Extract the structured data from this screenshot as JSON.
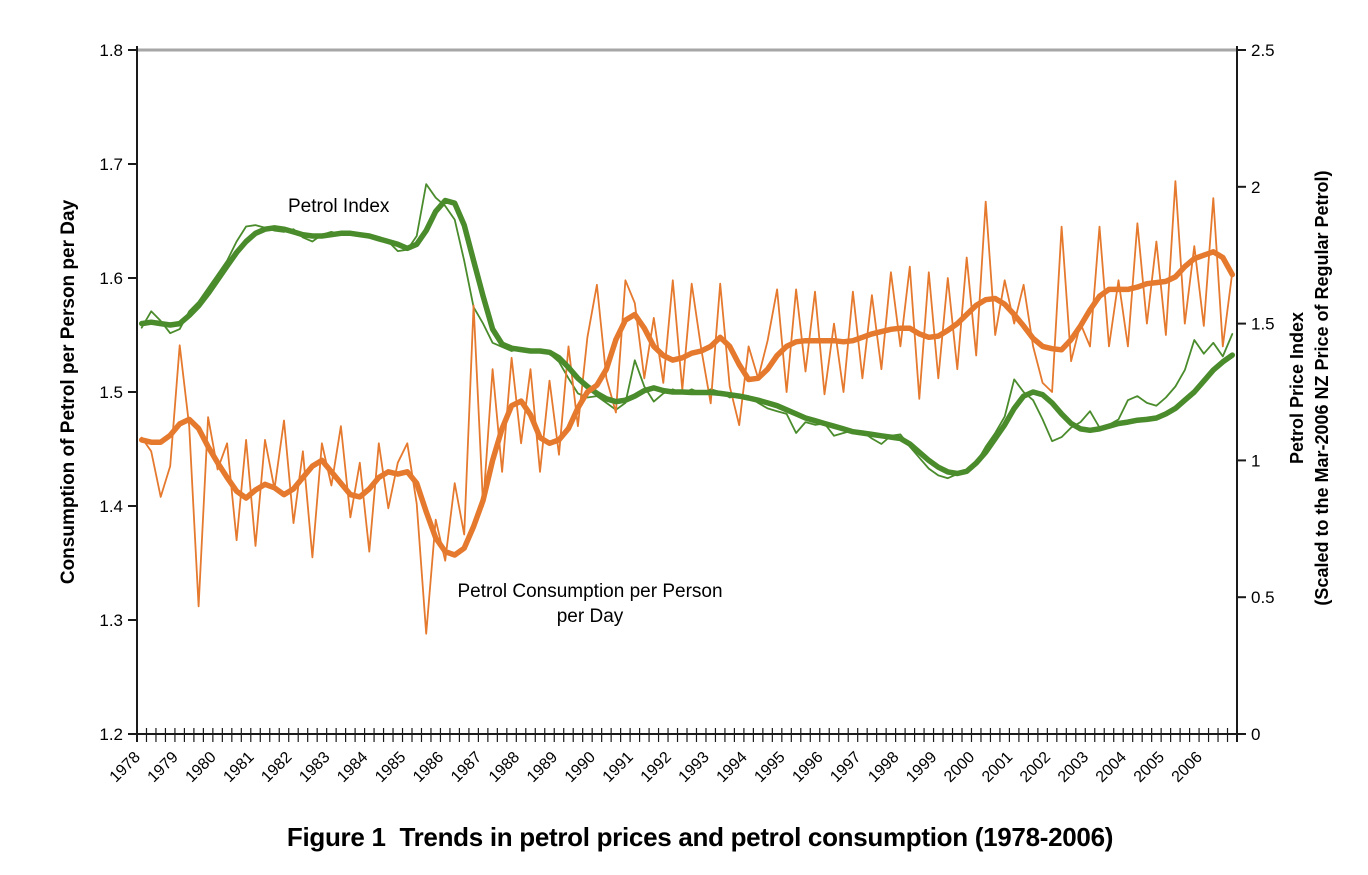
{
  "figure": {
    "caption": "Figure 1  Trends in petrol prices and petrol consumption (1978-2006)"
  },
  "chart_data": {
    "type": "line",
    "title": "Figure 1  Trends in petrol prices and petrol consumption (1978-2006)",
    "x": {
      "frequency": "quarterly",
      "start_year": 1978,
      "end_year": 2006,
      "year_labels": [
        "1978",
        "1979",
        "1980",
        "1981",
        "1982",
        "1983",
        "1984",
        "1985",
        "1986",
        "1987",
        "1988",
        "1989",
        "1990",
        "1991",
        "1992",
        "1993",
        "1994",
        "1995",
        "1996",
        "1997",
        "1998",
        "1999",
        "2000",
        "2001",
        "2002",
        "2003",
        "2004",
        "2005",
        "2006"
      ]
    },
    "axes": {
      "left": {
        "title": "Consumption of Petrol per Person per Day",
        "min": 1.2,
        "max": 1.8,
        "step": 0.1,
        "tick_labels": [
          "1.2",
          "1.3",
          "1.4",
          "1.5",
          "1.6",
          "1.7",
          "1.8"
        ]
      },
      "right": {
        "title_line1": "Petrol Price Index",
        "title_line2": "(Scaled to the Mar-2006 NZ Price of Regular Petrol)",
        "min": 0,
        "max": 2.5,
        "step": 0.5,
        "tick_labels": [
          "0",
          "0.5",
          "1",
          "1.5",
          "2",
          "2.5"
        ]
      }
    },
    "annotations": {
      "petrol_index_label": "Petrol Index",
      "consumption_label_line1": "Petrol Consumption per Person",
      "consumption_label_line2": "per Day"
    },
    "colors": {
      "consumption": "#E5792E",
      "price_index": "#4A8B2C",
      "chart_border": "#A6A6A6",
      "axis": "#1a1a1a"
    },
    "legend_position": "none",
    "grid": false,
    "series": [
      {
        "name": "Petrol Consumption per Person per Day (quarterly)",
        "axis": "left",
        "color_key": "consumption",
        "width": 1.8,
        "values": [
          1.46,
          1.448,
          1.408,
          1.435,
          1.541,
          1.47,
          1.312,
          1.478,
          1.432,
          1.455,
          1.37,
          1.458,
          1.365,
          1.458,
          1.415,
          1.475,
          1.385,
          1.448,
          1.355,
          1.455,
          1.418,
          1.47,
          1.39,
          1.438,
          1.36,
          1.455,
          1.398,
          1.438,
          1.455,
          1.402,
          1.288,
          1.388,
          1.352,
          1.42,
          1.375,
          1.576,
          1.4,
          1.52,
          1.43,
          1.53,
          1.455,
          1.52,
          1.43,
          1.51,
          1.445,
          1.54,
          1.47,
          1.548,
          1.594,
          1.512,
          1.482,
          1.598,
          1.578,
          1.512,
          1.565,
          1.508,
          1.598,
          1.502,
          1.595,
          1.538,
          1.49,
          1.595,
          1.505,
          1.471,
          1.54,
          1.512,
          1.545,
          1.59,
          1.5,
          1.59,
          1.518,
          1.588,
          1.498,
          1.56,
          1.5,
          1.588,
          1.512,
          1.585,
          1.52,
          1.605,
          1.54,
          1.61,
          1.494,
          1.605,
          1.512,
          1.6,
          1.52,
          1.618,
          1.532,
          1.667,
          1.55,
          1.598,
          1.56,
          1.594,
          1.54,
          1.508,
          1.5,
          1.645,
          1.527,
          1.56,
          1.54,
          1.645,
          1.54,
          1.598,
          1.54,
          1.648,
          1.56,
          1.632,
          1.55,
          1.685,
          1.56,
          1.628,
          1.558,
          1.67,
          1.54,
          1.605
        ]
      },
      {
        "name": "Petrol Consumption per Person per Day (trend)",
        "axis": "left",
        "color_key": "consumption",
        "width": 5.5,
        "values": [
          1.458,
          1.456,
          1.456,
          1.462,
          1.472,
          1.476,
          1.468,
          1.452,
          1.438,
          1.425,
          1.413,
          1.407,
          1.414,
          1.419,
          1.416,
          1.41,
          1.415,
          1.425,
          1.435,
          1.44,
          1.43,
          1.42,
          1.41,
          1.408,
          1.415,
          1.425,
          1.43,
          1.428,
          1.43,
          1.42,
          1.395,
          1.372,
          1.36,
          1.357,
          1.363,
          1.382,
          1.405,
          1.44,
          1.468,
          1.488,
          1.492,
          1.48,
          1.46,
          1.455,
          1.458,
          1.468,
          1.486,
          1.5,
          1.506,
          1.52,
          1.546,
          1.563,
          1.568,
          1.556,
          1.54,
          1.532,
          1.528,
          1.53,
          1.534,
          1.536,
          1.54,
          1.548,
          1.54,
          1.524,
          1.511,
          1.512,
          1.52,
          1.532,
          1.54,
          1.544,
          1.545,
          1.545,
          1.545,
          1.545,
          1.544,
          1.545,
          1.548,
          1.551,
          1.553,
          1.555,
          1.556,
          1.556,
          1.551,
          1.548,
          1.549,
          1.554,
          1.56,
          1.568,
          1.576,
          1.581,
          1.582,
          1.577,
          1.568,
          1.558,
          1.547,
          1.54,
          1.538,
          1.537,
          1.546,
          1.558,
          1.572,
          1.584,
          1.59,
          1.59,
          1.59,
          1.592,
          1.595,
          1.596,
          1.597,
          1.601,
          1.61,
          1.617,
          1.62,
          1.623,
          1.618,
          1.603
        ]
      },
      {
        "name": "Petrol Index (quarterly)",
        "axis": "right",
        "color_key": "price_index",
        "width": 1.8,
        "values": [
          1.485,
          1.545,
          1.51,
          1.465,
          1.48,
          1.545,
          1.58,
          1.63,
          1.68,
          1.73,
          1.8,
          1.855,
          1.86,
          1.85,
          1.84,
          1.835,
          1.845,
          1.815,
          1.8,
          1.825,
          1.835,
          1.825,
          1.83,
          1.83,
          1.82,
          1.81,
          1.8,
          1.765,
          1.77,
          1.82,
          2.01,
          1.96,
          1.93,
          1.88,
          1.73,
          1.56,
          1.5,
          1.43,
          1.415,
          1.4,
          1.41,
          1.4,
          1.405,
          1.39,
          1.36,
          1.3,
          1.245,
          1.23,
          1.235,
          1.21,
          1.185,
          1.21,
          1.366,
          1.27,
          1.215,
          1.245,
          1.26,
          1.245,
          1.26,
          1.245,
          1.26,
          1.25,
          1.23,
          1.24,
          1.235,
          1.21,
          1.19,
          1.18,
          1.17,
          1.1,
          1.14,
          1.13,
          1.135,
          1.09,
          1.1,
          1.11,
          1.105,
          1.08,
          1.06,
          1.09,
          1.095,
          1.05,
          1.01,
          0.97,
          0.945,
          0.935,
          0.95,
          0.965,
          0.99,
          1.05,
          1.1,
          1.16,
          1.296,
          1.25,
          1.22,
          1.15,
          1.07,
          1.085,
          1.12,
          1.14,
          1.18,
          1.12,
          1.13,
          1.15,
          1.22,
          1.235,
          1.21,
          1.2,
          1.23,
          1.27,
          1.33,
          1.44,
          1.39,
          1.43,
          1.38,
          1.462
        ]
      },
      {
        "name": "Petrol Index (trend)",
        "axis": "right",
        "color_key": "price_index",
        "width": 5.5,
        "values": [
          1.5,
          1.505,
          1.5,
          1.495,
          1.5,
          1.53,
          1.565,
          1.61,
          1.66,
          1.71,
          1.76,
          1.8,
          1.83,
          1.845,
          1.85,
          1.845,
          1.835,
          1.825,
          1.82,
          1.82,
          1.825,
          1.83,
          1.83,
          1.825,
          1.82,
          1.81,
          1.8,
          1.79,
          1.775,
          1.79,
          1.84,
          1.91,
          1.95,
          1.94,
          1.86,
          1.73,
          1.6,
          1.48,
          1.425,
          1.41,
          1.405,
          1.4,
          1.4,
          1.395,
          1.375,
          1.34,
          1.3,
          1.27,
          1.245,
          1.225,
          1.215,
          1.22,
          1.235,
          1.255,
          1.265,
          1.255,
          1.25,
          1.25,
          1.248,
          1.248,
          1.248,
          1.245,
          1.24,
          1.235,
          1.228,
          1.22,
          1.21,
          1.2,
          1.185,
          1.17,
          1.155,
          1.145,
          1.135,
          1.125,
          1.115,
          1.105,
          1.1,
          1.095,
          1.09,
          1.085,
          1.08,
          1.06,
          1.03,
          1.0,
          0.975,
          0.958,
          0.952,
          0.96,
          0.99,
          1.03,
          1.08,
          1.13,
          1.19,
          1.235,
          1.25,
          1.24,
          1.21,
          1.17,
          1.135,
          1.115,
          1.11,
          1.115,
          1.125,
          1.135,
          1.14,
          1.147,
          1.15,
          1.155,
          1.17,
          1.19,
          1.22,
          1.25,
          1.29,
          1.33,
          1.36,
          1.385
        ]
      }
    ]
  }
}
